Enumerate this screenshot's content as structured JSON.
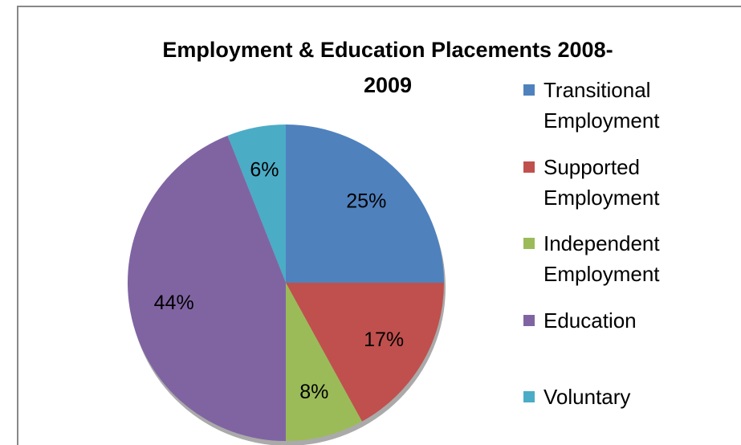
{
  "chart_data": {
    "type": "pie",
    "title": "Employment & Education Placements 2008-2009",
    "categories": [
      "Transitional Employment",
      "Supported Employment",
      "Independent Employment",
      "Education",
      "Voluntary"
    ],
    "values": [
      25,
      17,
      8,
      44,
      6
    ],
    "value_labels": [
      "25%",
      "17%",
      "8%",
      "44%",
      "6%"
    ],
    "colors": [
      "#4f81bd",
      "#c0504d",
      "#9bbb59",
      "#8064a2",
      "#4bacc6"
    ],
    "legend": "right"
  }
}
